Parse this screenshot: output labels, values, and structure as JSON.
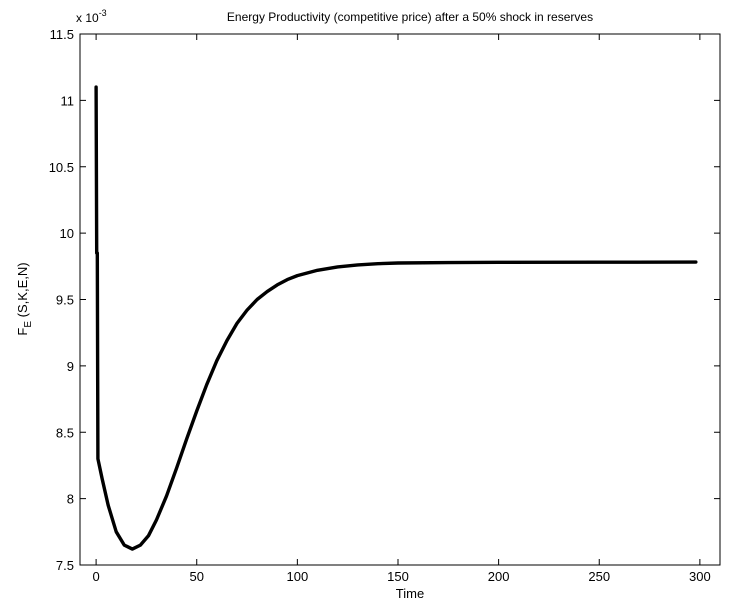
{
  "chart_data": {
    "type": "line",
    "title": "Energy Productivity (competitive price) after a 50% shock in reserves",
    "xlabel": "Time",
    "ylabel": {
      "main": "F",
      "sub": "E",
      "rest": " (S,K,E,N)"
    },
    "y_multiplier": {
      "base": "x 10",
      "exp": "-3"
    },
    "xlim": [
      -8,
      310
    ],
    "ylim": [
      7.5,
      11.5
    ],
    "x_ticks": [
      0,
      50,
      100,
      150,
      200,
      250,
      300
    ],
    "x_tick_labels": [
      "0",
      "50",
      "100",
      "150",
      "200",
      "250",
      "300"
    ],
    "y_ticks": [
      7.5,
      8,
      8.5,
      9,
      9.5,
      10,
      10.5,
      11,
      11.5
    ],
    "y_tick_labels": [
      "7.5",
      "8",
      "8.5",
      "9",
      "9.5",
      "10",
      "10.5",
      "11",
      "11.5"
    ],
    "grid": false,
    "series": [
      {
        "points": [
          [
            0,
            11.1
          ],
          [
            0.3,
            9.85
          ],
          [
            0.6,
            9.85
          ],
          [
            0.9,
            8.3
          ],
          [
            3,
            8.15
          ],
          [
            6,
            7.95
          ],
          [
            10,
            7.75
          ],
          [
            14,
            7.65
          ],
          [
            18,
            7.62
          ],
          [
            22,
            7.65
          ],
          [
            26,
            7.72
          ],
          [
            30,
            7.84
          ],
          [
            35,
            8.02
          ],
          [
            40,
            8.23
          ],
          [
            45,
            8.45
          ],
          [
            50,
            8.66
          ],
          [
            55,
            8.86
          ],
          [
            60,
            9.04
          ],
          [
            65,
            9.19
          ],
          [
            70,
            9.32
          ],
          [
            75,
            9.42
          ],
          [
            80,
            9.5
          ],
          [
            85,
            9.56
          ],
          [
            90,
            9.61
          ],
          [
            95,
            9.65
          ],
          [
            100,
            9.68
          ],
          [
            110,
            9.72
          ],
          [
            120,
            9.745
          ],
          [
            130,
            9.76
          ],
          [
            140,
            9.77
          ],
          [
            150,
            9.775
          ],
          [
            175,
            9.778
          ],
          [
            200,
            9.78
          ],
          [
            250,
            9.781
          ],
          [
            298,
            9.782
          ]
        ]
      }
    ]
  }
}
